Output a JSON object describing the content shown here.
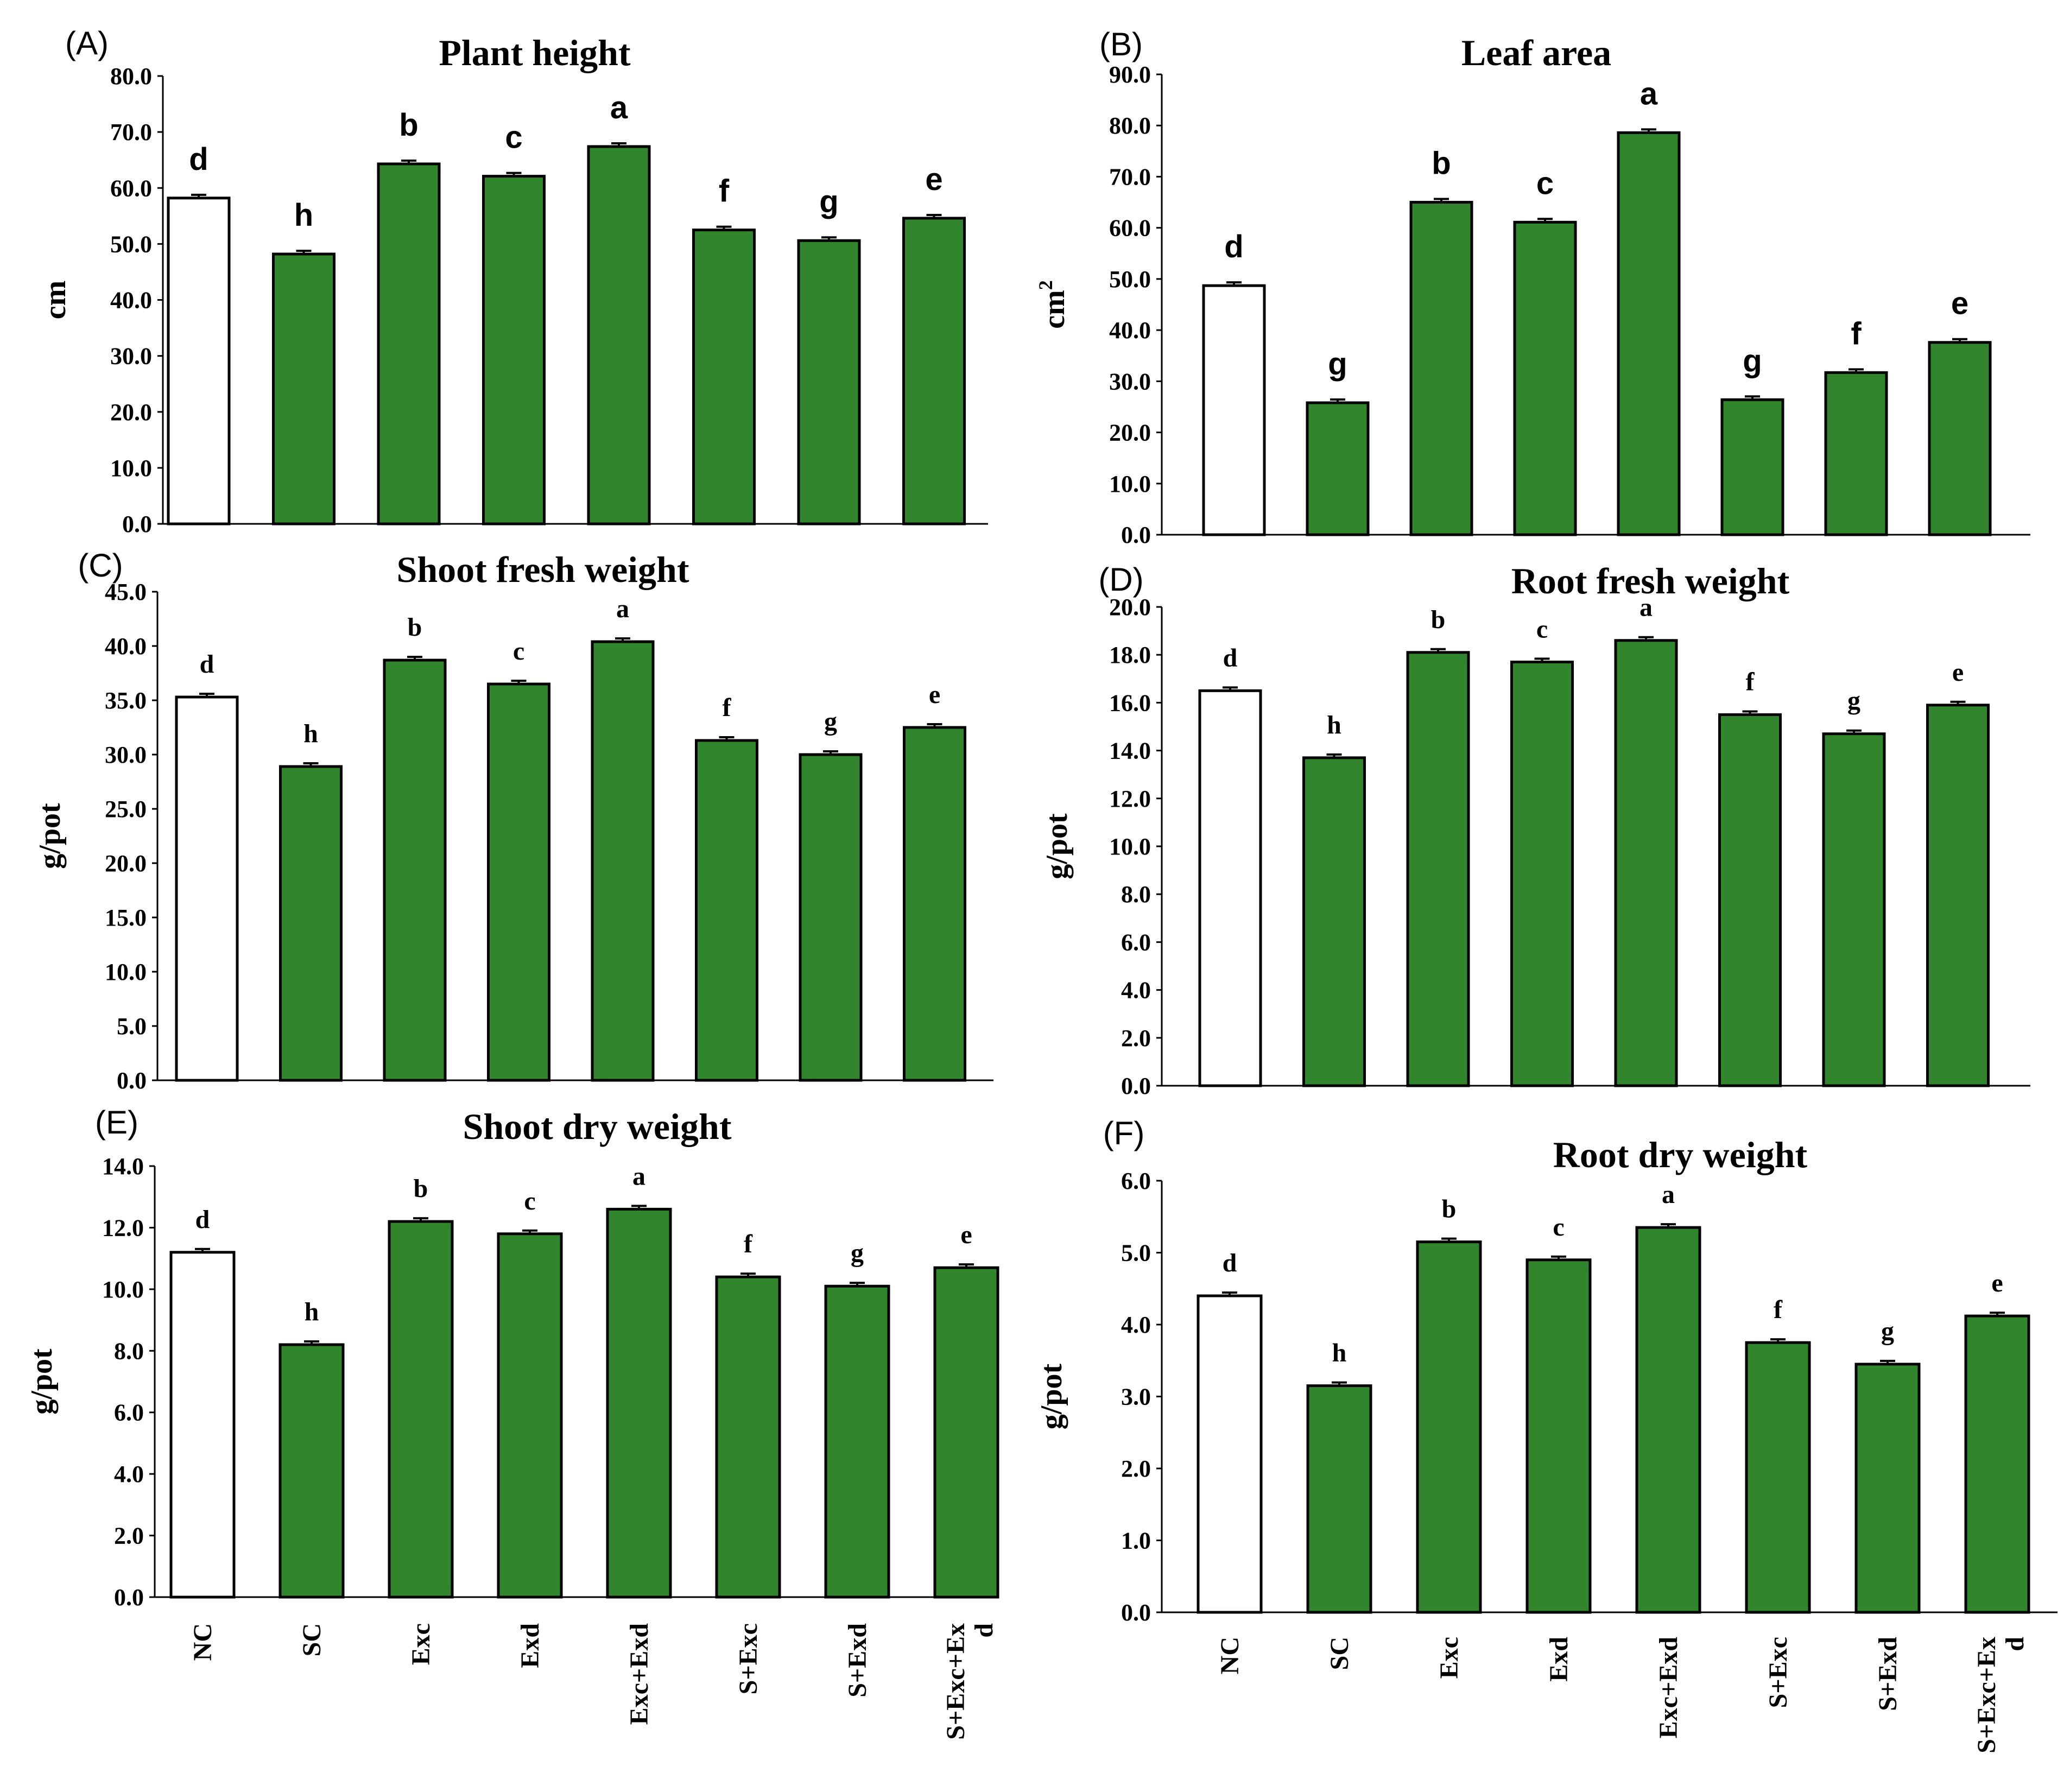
{
  "colors": {
    "control_fill": "#ffffff",
    "treatment_fill": "#31862d",
    "outline": "#000000"
  },
  "chart_data": [
    {
      "type": "bar",
      "panel": "(A)",
      "title": "Plant height",
      "ylabel": "cm",
      "ylim": [
        0,
        80
      ],
      "yticks": [
        "0.0",
        "10.0",
        "20.0",
        "30.0",
        "40.0",
        "50.0",
        "60.0",
        "70.0",
        "80.0"
      ],
      "categories": [
        "NC",
        "SC",
        "Exc",
        "Exd",
        "Exc+Exd",
        "S+Exc",
        "S+Exd",
        "S+Exc+Exd"
      ],
      "values": [
        58.2,
        48.2,
        64.3,
        62.1,
        67.4,
        52.5,
        50.6,
        54.6
      ],
      "significance": [
        "d",
        "h",
        "b",
        "c",
        "a",
        "f",
        "g",
        "e"
      ]
    },
    {
      "type": "bar",
      "panel": "(B)",
      "title": "Leaf area",
      "ylabel": "cm",
      "ylabel_sup": "2",
      "ylim": [
        0,
        90
      ],
      "yticks": [
        "0.0",
        "10.0",
        "20.0",
        "30.0",
        "40.0",
        "50.0",
        "60.0",
        "70.0",
        "80.0",
        "90.0"
      ],
      "categories": [
        "NC",
        "SC",
        "Exc",
        "Exd",
        "Exc+Exd",
        "S+Exc",
        "S+Exd",
        "S+Exc+Exd"
      ],
      "values": [
        48.7,
        25.8,
        65.0,
        61.1,
        78.6,
        26.4,
        31.7,
        37.6
      ],
      "significance": [
        "d",
        "g",
        "b",
        "c",
        "a",
        "g",
        "f",
        "e"
      ]
    },
    {
      "type": "bar",
      "panel": "(C)",
      "title": "Shoot fresh weight",
      "ylabel": "g/pot",
      "ylim": [
        0,
        45
      ],
      "yticks": [
        "0.0",
        "5.0",
        "10.0",
        "15.0",
        "20.0",
        "25.0",
        "30.0",
        "35.0",
        "40.0",
        "45.0"
      ],
      "categories": [
        "NC",
        "SC",
        "Exc",
        "Exd",
        "Exc+Exd",
        "S+Exc",
        "S+Exd",
        "S+Exc+Exd"
      ],
      "values": [
        35.3,
        28.9,
        38.7,
        36.5,
        40.4,
        31.3,
        30.0,
        32.5
      ],
      "significance": [
        "d",
        "h",
        "b",
        "c",
        "a",
        "f",
        "g",
        "e"
      ]
    },
    {
      "type": "bar",
      "panel": "(D)",
      "title": "Root fresh weight",
      "ylabel": "g/pot",
      "ylim": [
        0,
        20
      ],
      "yticks": [
        "0.0",
        "2.0",
        "4.0",
        "6.0",
        "8.0",
        "10.0",
        "12.0",
        "14.0",
        "16.0",
        "18.0",
        "20.0"
      ],
      "categories": [
        "NC",
        "SC",
        "Exc",
        "Exd",
        "Exc+Exd",
        "S+Exc",
        "S+Exd",
        "S+Exc+Exd"
      ],
      "values": [
        16.5,
        13.7,
        18.1,
        17.7,
        18.6,
        15.5,
        14.7,
        15.9
      ],
      "significance": [
        "d",
        "h",
        "b",
        "c",
        "a",
        "f",
        "g",
        "e"
      ]
    },
    {
      "type": "bar",
      "panel": "(E)",
      "title": "Shoot dry weight",
      "ylabel": "g/pot",
      "ylim": [
        0,
        14
      ],
      "yticks": [
        "0.0",
        "2.0",
        "4.0",
        "6.0",
        "8.0",
        "10.0",
        "12.0",
        "14.0"
      ],
      "categories": [
        "NC",
        "SC",
        "Exc",
        "Exd",
        "Exc+Exd",
        "S+Exc",
        "S+Exd",
        "S+Exc+Exd"
      ],
      "category_lines": [
        [
          "NC"
        ],
        [
          "SC"
        ],
        [
          "Exc"
        ],
        [
          "Exd"
        ],
        [
          "Exc+Exd"
        ],
        [
          "S+Exc"
        ],
        [
          "S+Exd"
        ],
        [
          "S+Exc+Ex",
          "d"
        ]
      ],
      "values": [
        11.2,
        8.2,
        12.2,
        11.8,
        12.6,
        10.4,
        10.1,
        10.7
      ],
      "significance": [
        "d",
        "h",
        "b",
        "c",
        "a",
        "f",
        "g",
        "e"
      ]
    },
    {
      "type": "bar",
      "panel": "(F)",
      "title": "Root dry weight",
      "ylabel": "g/pot",
      "ylim": [
        0,
        6
      ],
      "yticks": [
        "0.0",
        "1.0",
        "2.0",
        "3.0",
        "4.0",
        "5.0",
        "6.0"
      ],
      "categories": [
        "NC",
        "SC",
        "Exc",
        "Exd",
        "Exc+Exd",
        "S+Exc",
        "S+Exd",
        "S+Exc+Exd"
      ],
      "category_lines": [
        [
          "NC"
        ],
        [
          "SC"
        ],
        [
          "Exc"
        ],
        [
          "Exd"
        ],
        [
          "Exc+Exd"
        ],
        [
          "S+Exc"
        ],
        [
          "S+Exd"
        ],
        [
          "S+Exc+Ex",
          "d"
        ]
      ],
      "values": [
        4.4,
        3.15,
        5.15,
        4.9,
        5.35,
        3.75,
        3.45,
        4.12
      ],
      "significance": [
        "d",
        "h",
        "b",
        "c",
        "a",
        "f",
        "g",
        "e"
      ]
    }
  ]
}
